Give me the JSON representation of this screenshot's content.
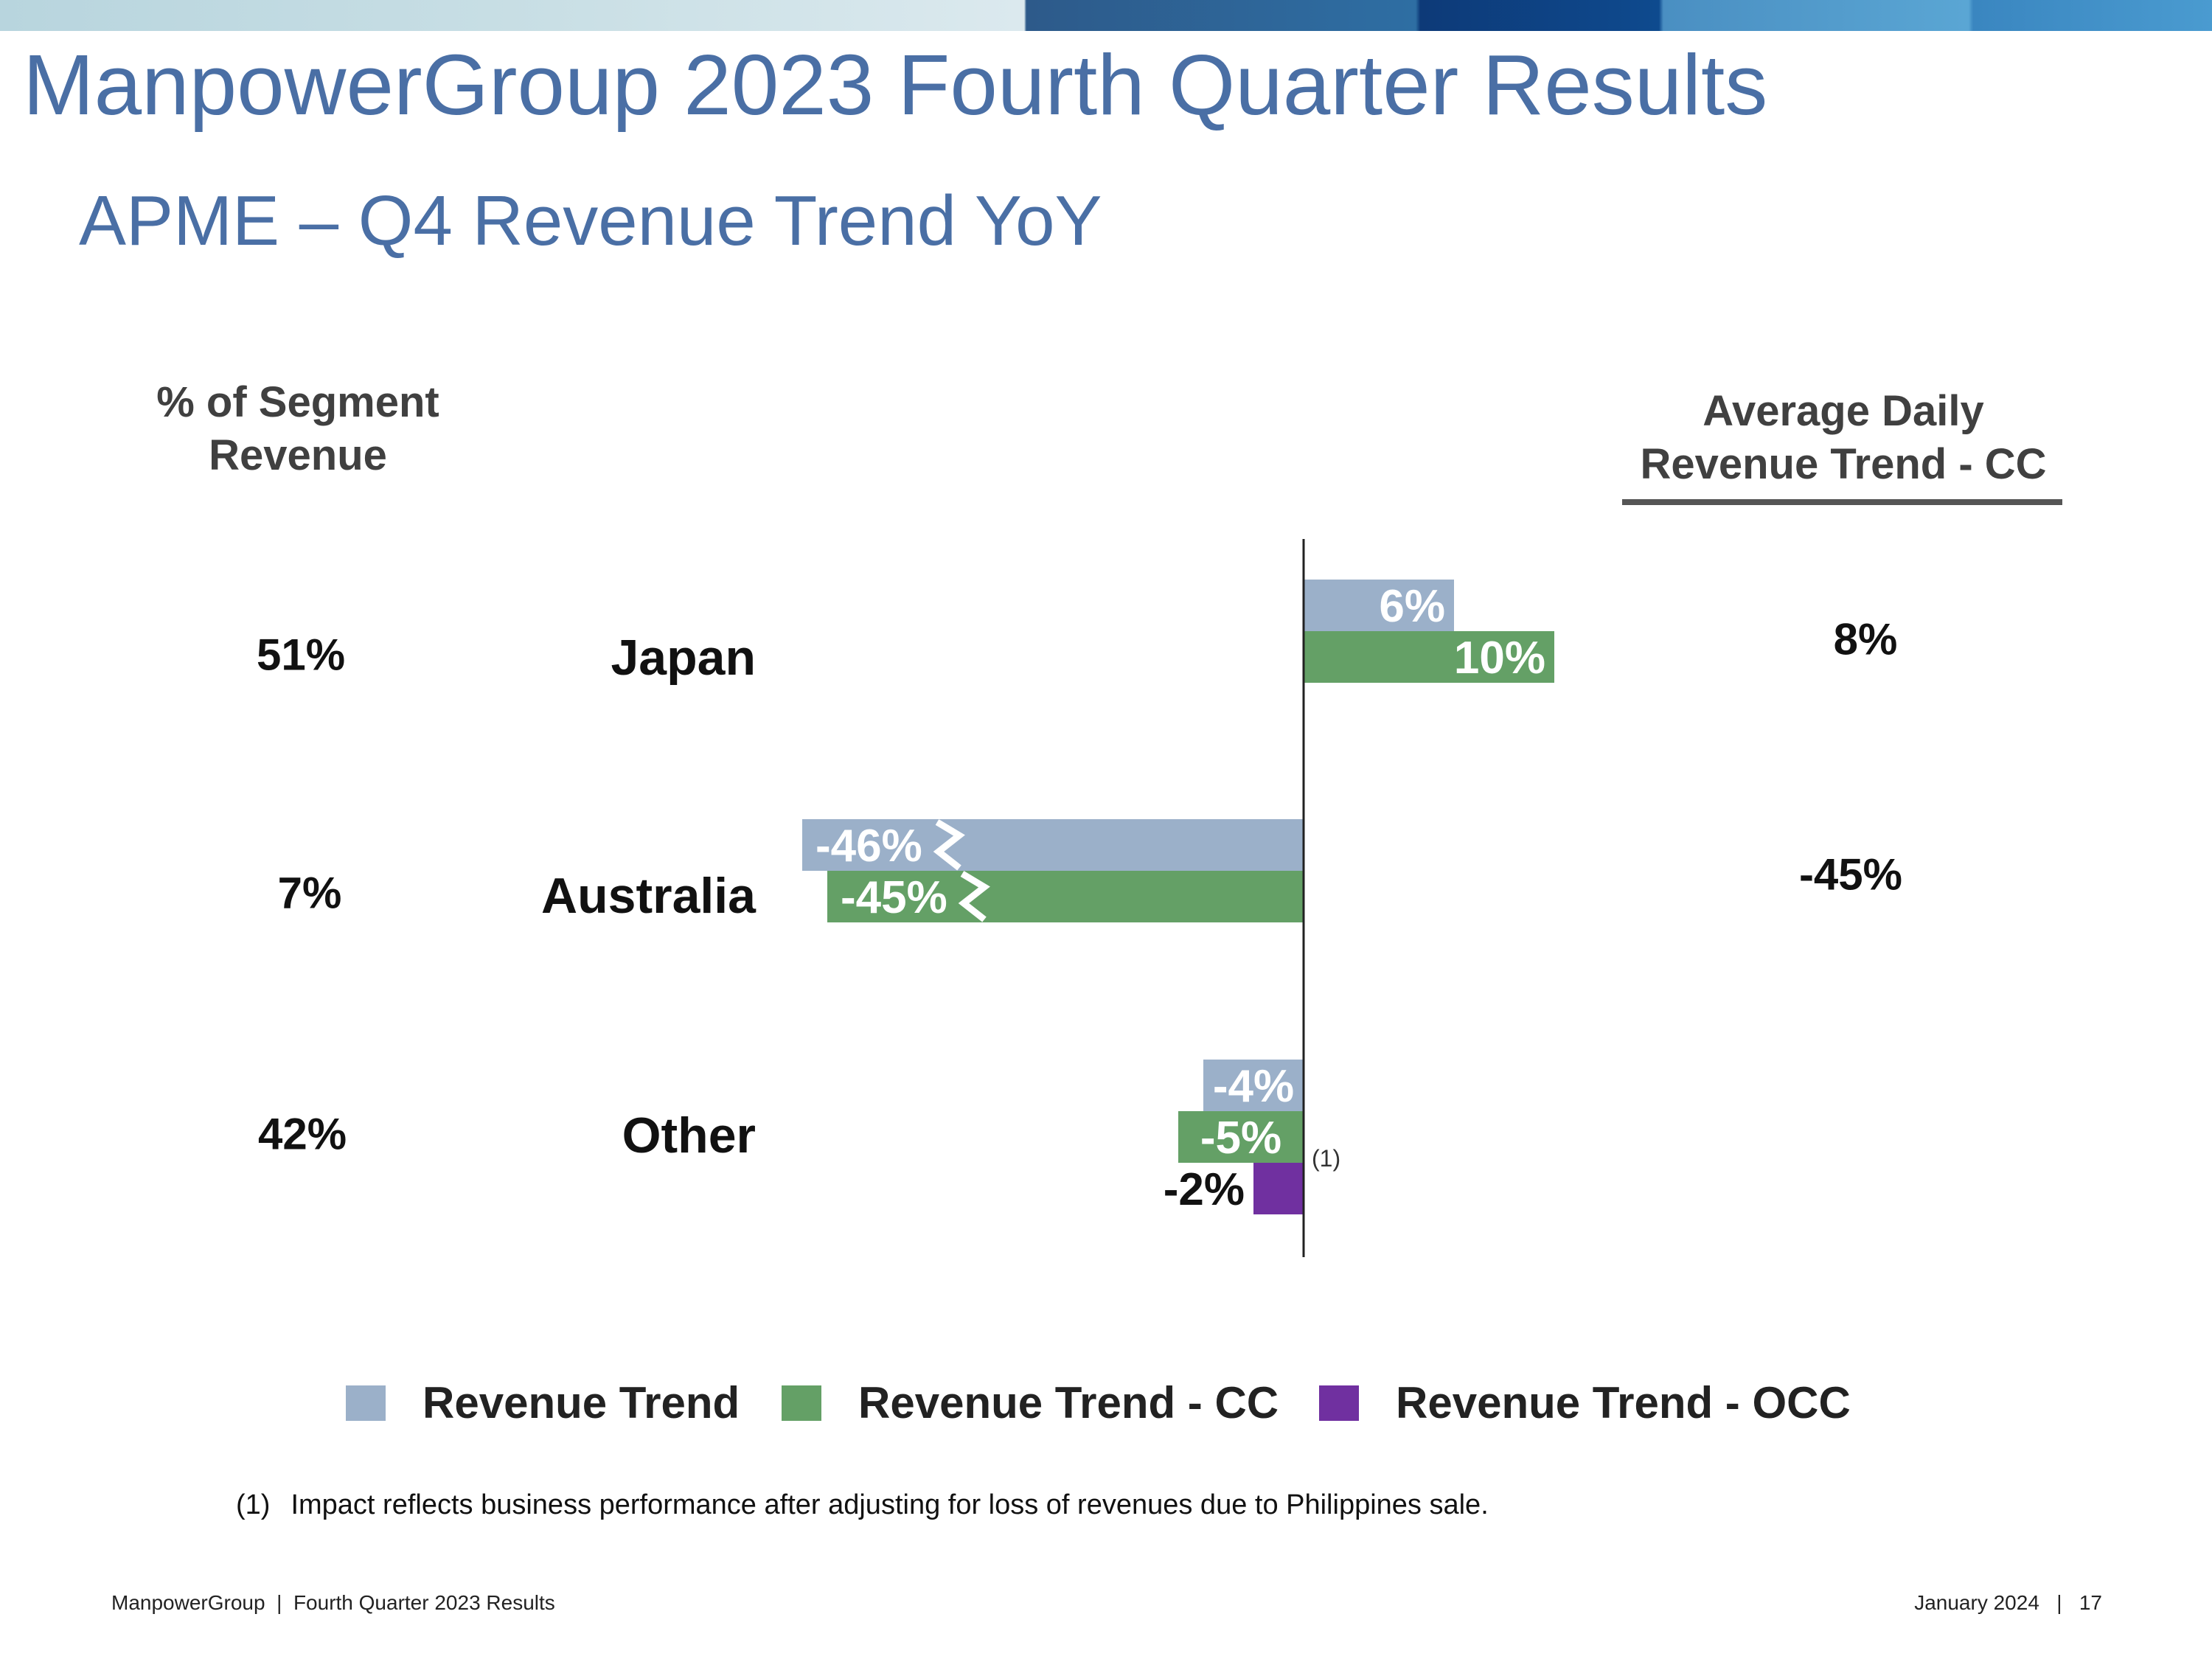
{
  "header": {
    "title": "ManpowerGroup 2023 Fourth Quarter Results",
    "subtitle": "APME – Q4 Revenue Trend YoY"
  },
  "left_column": {
    "heading_line1": "% of Segment",
    "heading_line2": "Revenue",
    "values": [
      "51%",
      "7%",
      "42%"
    ]
  },
  "right_column": {
    "heading_line1": "Average Daily",
    "heading_line2": "Revenue Trend - CC",
    "values": [
      "8%",
      "-45%",
      ""
    ]
  },
  "chart_data": {
    "type": "bar",
    "orientation": "horizontal",
    "categories": [
      "Japan",
      "Australia",
      "Other"
    ],
    "series": [
      {
        "name": "Revenue Trend",
        "color": "#9bb0c9",
        "values": [
          6,
          -46,
          -4
        ]
      },
      {
        "name": "Revenue Trend - CC",
        "color": "#64a066",
        "values": [
          10,
          -45,
          -5
        ]
      },
      {
        "name": "Revenue Trend - OCC",
        "color": "#7030a0",
        "values": [
          null,
          null,
          -2
        ]
      }
    ],
    "value_labels": [
      [
        "6%",
        "-46%",
        "-4%"
      ],
      [
        "10%",
        "-45%",
        "-5%"
      ],
      [
        null,
        null,
        "-2%"
      ]
    ],
    "axis_break_categories": [
      "Australia"
    ],
    "footnote_marker": "(1)",
    "legend_position": "bottom"
  },
  "footnote": {
    "marker": "(1)",
    "text": "Impact reflects business performance after adjusting for loss of revenues due to Philippines sale."
  },
  "footer": {
    "left": "ManpowerGroup  |  Fourth Quarter 2023 Results",
    "right": "January 2024   |   17"
  }
}
